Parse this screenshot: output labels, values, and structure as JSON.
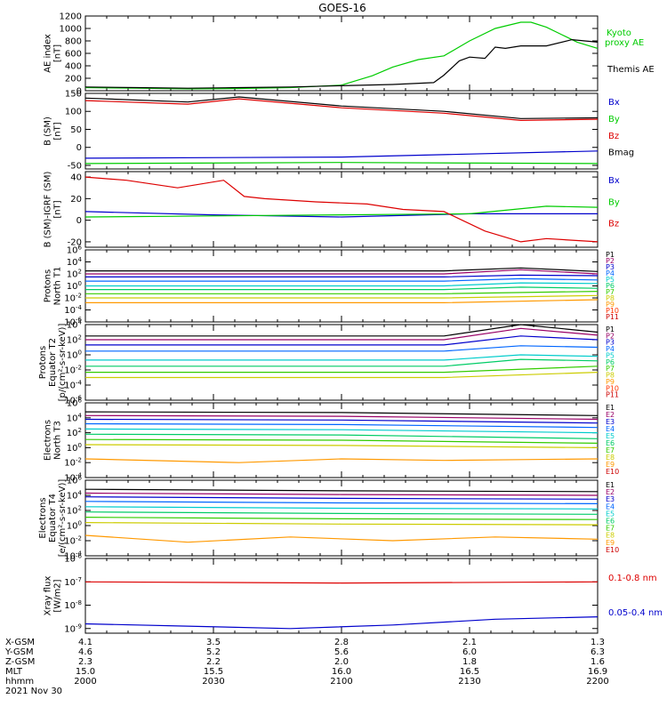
{
  "title": "GOES-16",
  "colors": {
    "black": "#000000",
    "green": "#00cc00",
    "red": "#dd0000",
    "blue": "#0000cc",
    "P": [
      "#000000",
      "#990066",
      "#0000cc",
      "#0066ff",
      "#00cccc",
      "#00cc66",
      "#33cc00",
      "#cccc00",
      "#ff9900",
      "#ff3300",
      "#cc0000"
    ],
    "E": [
      "#000000",
      "#990066",
      "#0000cc",
      "#0066ff",
      "#00cccc",
      "#00cc66",
      "#33cc00",
      "#cccc00",
      "#ff9900",
      "#cc0000"
    ]
  },
  "chart_data": [
    {
      "type": "line",
      "id": "ae",
      "ylabel": [
        "AE index",
        "[nT]"
      ],
      "ylim": [
        0,
        1200
      ],
      "scale": "linear",
      "yticks": [
        "1200",
        "1000",
        "800",
        "600",
        "400",
        "200",
        "0"
      ],
      "legend": [
        "Kyoto",
        "proxy AE",
        "Themis AE"
      ],
      "series": [
        {
          "name": "Kyoto proxy AE",
          "color": "green",
          "x": [
            0,
            0.1,
            0.2,
            0.3,
            0.4,
            0.5,
            0.52,
            0.56,
            0.6,
            0.65,
            0.7,
            0.75,
            0.8,
            0.85,
            0.87,
            0.9,
            0.93,
            0.96,
            1.0
          ],
          "y": [
            50,
            40,
            30,
            35,
            50,
            90,
            140,
            240,
            380,
            500,
            560,
            800,
            1000,
            1100,
            1100,
            1020,
            900,
            780,
            680
          ]
        },
        {
          "name": "Themis AE",
          "color": "black",
          "x": [
            0,
            0.1,
            0.2,
            0.3,
            0.4,
            0.5,
            0.6,
            0.68,
            0.7,
            0.73,
            0.75,
            0.78,
            0.8,
            0.82,
            0.85,
            0.9,
            0.95,
            1.0
          ],
          "y": [
            60,
            50,
            40,
            50,
            60,
            80,
            100,
            130,
            250,
            480,
            540,
            520,
            700,
            680,
            720,
            720,
            820,
            780
          ]
        }
      ]
    },
    {
      "type": "line",
      "id": "bsm",
      "ylabel": [
        "B (SM)",
        "[nT]"
      ],
      "ylim": [
        -60,
        150
      ],
      "scale": "linear",
      "yticks": [
        "150",
        "100",
        "50",
        "0",
        "-50"
      ],
      "legend": [
        "Bx",
        "By",
        "Bz",
        "Bmag"
      ],
      "series": [
        {
          "name": "Bx",
          "color": "blue",
          "x": [
            0,
            0.5,
            1.0
          ],
          "y": [
            -30,
            -27,
            -10
          ]
        },
        {
          "name": "By",
          "color": "green",
          "x": [
            0,
            0.5,
            1.0
          ],
          "y": [
            -45,
            -42,
            -45
          ]
        },
        {
          "name": "Bz",
          "color": "red",
          "x": [
            0,
            0.2,
            0.3,
            0.5,
            0.7,
            0.85,
            1.0
          ],
          "y": [
            130,
            120,
            135,
            110,
            95,
            75,
            78
          ]
        },
        {
          "name": "Bmag",
          "color": "black",
          "x": [
            0,
            0.2,
            0.3,
            0.5,
            0.7,
            0.85,
            1.0
          ],
          "y": [
            137,
            126,
            140,
            115,
            100,
            80,
            82
          ]
        }
      ]
    },
    {
      "type": "line",
      "id": "bigrf",
      "ylabel": [
        "B (SM)-IGRF (SM)",
        "[nT]"
      ],
      "ylim": [
        -25,
        45
      ],
      "scale": "linear",
      "yticks": [
        "40",
        "20",
        "0",
        "-20"
      ],
      "legend": [
        "Bx",
        "By",
        "Bz"
      ],
      "series": [
        {
          "name": "Bx",
          "color": "blue",
          "x": [
            0,
            0.25,
            0.5,
            0.75,
            1.0
          ],
          "y": [
            8,
            5,
            3,
            6,
            6
          ]
        },
        {
          "name": "By",
          "color": "green",
          "x": [
            0,
            0.25,
            0.5,
            0.75,
            0.9,
            1.0
          ],
          "y": [
            3,
            4,
            5,
            6,
            13,
            12
          ]
        },
        {
          "name": "Bz",
          "color": "red",
          "x": [
            0,
            0.08,
            0.18,
            0.27,
            0.31,
            0.35,
            0.45,
            0.55,
            0.62,
            0.7,
            0.78,
            0.85,
            0.9,
            1.0
          ],
          "y": [
            40,
            37,
            30,
            37,
            22,
            20,
            17,
            15,
            10,
            8,
            -10,
            -20,
            -17,
            -20
          ]
        }
      ]
    },
    {
      "type": "line",
      "id": "protons-n",
      "ylabel": [
        "Protons",
        "North T1"
      ],
      "ylim": [
        -6,
        6
      ],
      "scale": "log",
      "yticks": [
        "10^6",
        "10^4",
        "10^2",
        "10^0",
        "10^-2",
        "10^-4",
        "10^-6"
      ],
      "legend": [
        "P1",
        "P2",
        "P3",
        "P4",
        "P5",
        "P6",
        "P7",
        "P8",
        "P9",
        "P10",
        "P11"
      ],
      "series": [
        {
          "name": "P1",
          "x": [
            0,
            0.7,
            0.85,
            1.0
          ],
          "y": [
            2.5,
            2.5,
            3.0,
            2.4
          ]
        },
        {
          "name": "P2",
          "x": [
            0,
            0.7,
            0.85,
            1.0
          ],
          "y": [
            2.0,
            2.0,
            2.7,
            2.0
          ]
        },
        {
          "name": "P3",
          "x": [
            0,
            0.7,
            0.85,
            1.0
          ],
          "y": [
            1.5,
            1.5,
            1.8,
            1.7
          ]
        },
        {
          "name": "P4",
          "x": [
            0,
            0.7,
            0.85,
            1.0
          ],
          "y": [
            0.8,
            0.8,
            1.2,
            1.0
          ]
        },
        {
          "name": "P5",
          "x": [
            0,
            0.7,
            0.85,
            1.0
          ],
          "y": [
            0.0,
            0.0,
            0.5,
            0.4
          ]
        },
        {
          "name": "P6",
          "x": [
            0,
            0.7,
            0.85,
            1.0
          ],
          "y": [
            -0.6,
            -0.6,
            -0.2,
            -0.4
          ]
        },
        {
          "name": "P7",
          "x": [
            0,
            0.7,
            1.0
          ],
          "y": [
            -1.3,
            -1.3,
            -0.9
          ]
        },
        {
          "name": "P8",
          "x": [
            0,
            0.7,
            1.0
          ],
          "y": [
            -2.0,
            -2.0,
            -1.6
          ]
        },
        {
          "name": "P9",
          "x": [
            0,
            0.7,
            1.0
          ],
          "y": [
            -2.8,
            -2.8,
            -2.3
          ]
        }
      ]
    },
    {
      "type": "line",
      "id": "protons-e",
      "ylabel": [
        "Protons",
        "Equator T2",
        "[p/(cm²-s-sr-keV)]"
      ],
      "ylim": [
        -6,
        4
      ],
      "scale": "log",
      "yticks": [
        "10^4",
        "10^2",
        "10^0",
        "10^-2",
        "10^-4",
        "10^-6"
      ],
      "legend": [
        "P1",
        "P2",
        "P3",
        "P4",
        "P5",
        "P6",
        "P7",
        "P8",
        "P9",
        "P10",
        "P11"
      ],
      "series": [
        {
          "name": "P1",
          "x": [
            0,
            0.7,
            0.85,
            1.0
          ],
          "y": [
            2.5,
            2.5,
            4.0,
            3.0
          ]
        },
        {
          "name": "P2",
          "x": [
            0,
            0.7,
            0.85,
            1.0
          ],
          "y": [
            2.0,
            2.0,
            3.5,
            2.6
          ]
        },
        {
          "name": "P3",
          "x": [
            0,
            0.7,
            0.85,
            1.0
          ],
          "y": [
            1.3,
            1.3,
            2.5,
            2.0
          ]
        },
        {
          "name": "P4",
          "x": [
            0,
            0.7,
            0.85,
            1.0
          ],
          "y": [
            0.5,
            0.5,
            1.2,
            1.0
          ]
        },
        {
          "name": "P5",
          "x": [
            0,
            0.7,
            0.85,
            1.0
          ],
          "y": [
            -0.7,
            -0.7,
            0.0,
            -0.2
          ]
        },
        {
          "name": "P6",
          "x": [
            0,
            0.7,
            0.85,
            1.0
          ],
          "y": [
            -1.5,
            -1.5,
            -0.6,
            -0.8
          ]
        },
        {
          "name": "P7",
          "x": [
            0,
            0.7,
            1.0
          ],
          "y": [
            -2.3,
            -2.3,
            -1.5
          ]
        },
        {
          "name": "P8",
          "x": [
            0,
            0.7,
            1.0
          ],
          "y": [
            -3.0,
            -3.0,
            -2.3
          ]
        }
      ]
    },
    {
      "type": "line",
      "id": "electrons-n",
      "ylabel": [
        "Electrons",
        "North T3"
      ],
      "ylim": [
        -4,
        6
      ],
      "scale": "log",
      "yticks": [
        "10^6",
        "10^4",
        "10^2",
        "10^0",
        "10^-2",
        "10^-4"
      ],
      "legend": [
        "E1",
        "E2",
        "E3",
        "E4",
        "E5",
        "E6",
        "E7",
        "E8",
        "E9",
        "E10"
      ],
      "series": [
        {
          "name": "E1",
          "x": [
            0,
            0.5,
            1.0
          ],
          "y": [
            4.8,
            4.7,
            4.3
          ]
        },
        {
          "name": "E2",
          "x": [
            0,
            0.5,
            1.0
          ],
          "y": [
            4.3,
            4.2,
            3.8
          ]
        },
        {
          "name": "E3",
          "x": [
            0,
            0.5,
            1.0
          ],
          "y": [
            3.8,
            3.7,
            3.3
          ]
        },
        {
          "name": "E4",
          "x": [
            0,
            0.5,
            1.0
          ],
          "y": [
            3.2,
            3.1,
            2.7
          ]
        },
        {
          "name": "E5",
          "x": [
            0,
            0.5,
            1.0
          ],
          "y": [
            2.5,
            2.4,
            2.0
          ]
        },
        {
          "name": "E6",
          "x": [
            0,
            0.5,
            1.0
          ],
          "y": [
            1.8,
            1.7,
            1.2
          ]
        },
        {
          "name": "E7",
          "x": [
            0,
            0.5,
            1.0
          ],
          "y": [
            1.1,
            1.0,
            0.6
          ]
        },
        {
          "name": "E8",
          "x": [
            0,
            0.5,
            1.0
          ],
          "y": [
            0.4,
            0.3,
            0.0
          ]
        },
        {
          "name": "E9",
          "x": [
            0,
            0.3,
            0.5,
            0.7,
            0.85,
            1.0
          ],
          "y": [
            -1.5,
            -2.0,
            -1.5,
            -1.7,
            -1.6,
            -1.5
          ]
        }
      ]
    },
    {
      "type": "line",
      "id": "electrons-e",
      "ylabel": [
        "Electrons",
        "Equator T4",
        "[e/(cm²-s-sr-keV)]"
      ],
      "ylim": [
        -4,
        6
      ],
      "scale": "log",
      "yticks": [
        "10^6",
        "10^4",
        "10^2",
        "10^0",
        "10^-2",
        "10^-4"
      ],
      "legend": [
        "E1",
        "E2",
        "E3",
        "E4",
        "E5",
        "E6",
        "E7",
        "E8",
        "E9",
        "E10"
      ],
      "series": [
        {
          "name": "E1",
          "x": [
            0,
            0.5,
            1.0
          ],
          "y": [
            4.8,
            4.6,
            4.5
          ]
        },
        {
          "name": "E2",
          "x": [
            0,
            0.5,
            1.0
          ],
          "y": [
            4.3,
            4.1,
            4.0
          ]
        },
        {
          "name": "E3",
          "x": [
            0,
            0.5,
            1.0
          ],
          "y": [
            3.8,
            3.6,
            3.5
          ]
        },
        {
          "name": "E4",
          "x": [
            0,
            0.5,
            1.0
          ],
          "y": [
            3.2,
            3.0,
            2.9
          ]
        },
        {
          "name": "E5",
          "x": [
            0,
            0.5,
            1.0
          ],
          "y": [
            2.5,
            2.3,
            2.2
          ]
        },
        {
          "name": "E6",
          "x": [
            0,
            0.5,
            1.0
          ],
          "y": [
            1.8,
            1.6,
            1.5
          ]
        },
        {
          "name": "E7",
          "x": [
            0,
            0.5,
            1.0
          ],
          "y": [
            1.1,
            0.9,
            0.8
          ]
        },
        {
          "name": "E8",
          "x": [
            0,
            0.5,
            1.0
          ],
          "y": [
            0.4,
            0.2,
            0.1
          ]
        },
        {
          "name": "E9",
          "x": [
            0,
            0.2,
            0.4,
            0.6,
            0.8,
            1.0
          ],
          "y": [
            -1.3,
            -2.2,
            -1.5,
            -2.0,
            -1.5,
            -1.8
          ]
        }
      ]
    },
    {
      "type": "line",
      "id": "xray",
      "ylabel": [
        "Xray flux",
        "[W/m2]"
      ],
      "ylim": [
        -9.2,
        -6
      ],
      "scale": "log",
      "yticks": [
        "10^-6",
        "10^-7",
        "10^-8",
        "10^-9"
      ],
      "legend": [
        "0.1-0.8 nm",
        "0.05-0.4 nm"
      ],
      "series": [
        {
          "name": "0.1-0.8 nm",
          "color": "red",
          "x": [
            0,
            0.5,
            1.0
          ],
          "y": [
            -7.0,
            -7.05,
            -7.0
          ]
        },
        {
          "name": "0.05-0.4 nm",
          "color": "blue",
          "x": [
            0,
            0.2,
            0.4,
            0.6,
            0.8,
            1.0
          ],
          "y": [
            -8.8,
            -8.9,
            -9.0,
            -8.85,
            -8.6,
            -8.5
          ]
        }
      ]
    }
  ],
  "footer": {
    "rows": [
      {
        "label": "X-GSM",
        "values": [
          "4.1",
          "3.5",
          "2.8",
          "2.1",
          "1.3"
        ]
      },
      {
        "label": "Y-GSM",
        "values": [
          "4.6",
          "5.2",
          "5.6",
          "6.0",
          "6.3"
        ]
      },
      {
        "label": "Z-GSM",
        "values": [
          "2.3",
          "2.2",
          "2.0",
          "1.8",
          "1.6"
        ]
      },
      {
        "label": "MLT",
        "values": [
          "15.0",
          "15.5",
          "16.0",
          "16.5",
          "16.9"
        ]
      },
      {
        "label": "hhmm",
        "values": [
          "2000",
          "2030",
          "2100",
          "2130",
          "2200"
        ]
      }
    ],
    "date": "2021 Nov 30"
  }
}
